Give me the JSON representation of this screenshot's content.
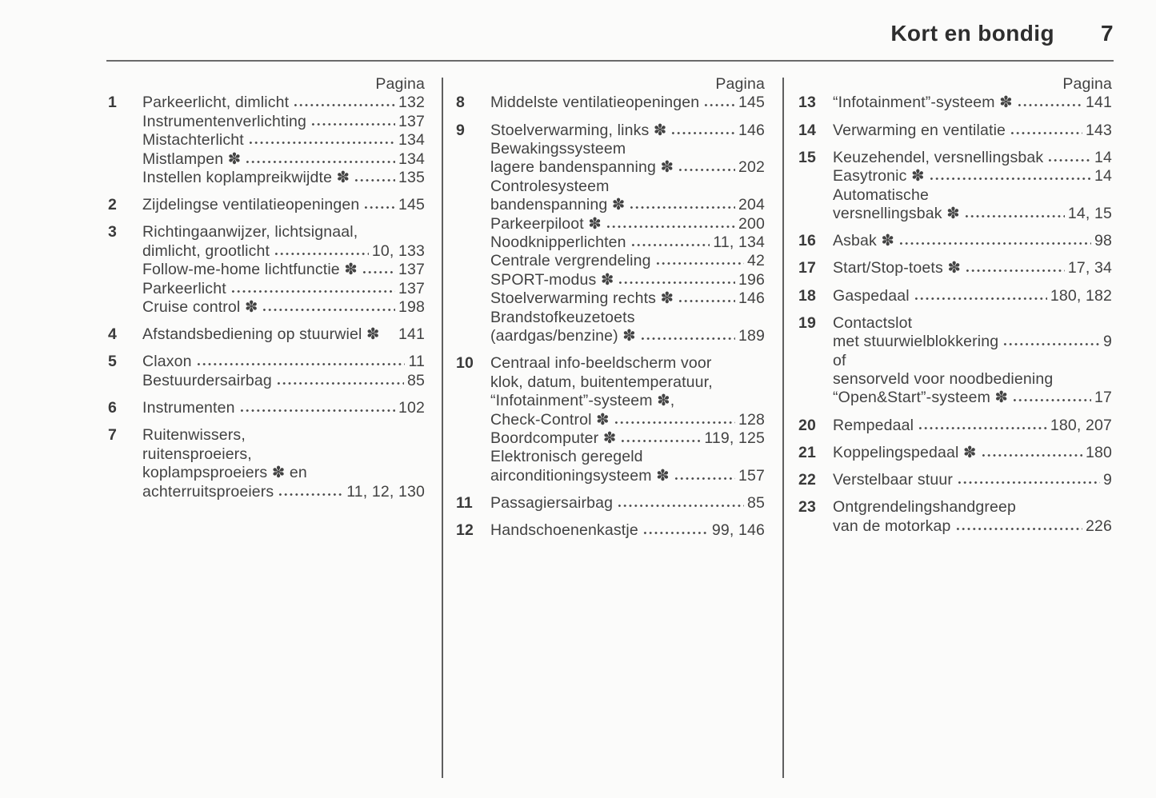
{
  "header": {
    "title": "Kort en bondig",
    "page_number": "7"
  },
  "columns": [
    {
      "pagina_label": "Pagina",
      "entries": [
        {
          "number": "1",
          "lines": [
            {
              "text": "Parkeerlicht, dimlicht",
              "dots": true,
              "page": "132"
            },
            {
              "text": "Instrumentenverlichting",
              "dots": true,
              "page": "137"
            },
            {
              "text": "Mistachterlicht",
              "dots": true,
              "page": "134"
            },
            {
              "text": "Mistlampen ✽",
              "dots": true,
              "page": "134"
            },
            {
              "text": "Instellen koplampreikwijdte ✽",
              "dots": true,
              "page": "135"
            }
          ]
        },
        {
          "number": "2",
          "lines": [
            {
              "text": "Zijdelingse ventilatieopeningen",
              "dots": true,
              "page": "145"
            }
          ]
        },
        {
          "number": "3",
          "lines": [
            {
              "text": "Richtingaanwijzer, lichtsignaal,"
            },
            {
              "text": "dimlicht, grootlicht",
              "dots": true,
              "page": "10, 133"
            },
            {
              "text": "Follow-me-home lichtfunctie ✽",
              "dots": true,
              "page": "137"
            },
            {
              "text": "Parkeerlicht",
              "dots": true,
              "page": "137"
            },
            {
              "text": "Cruise control ✽",
              "dots": true,
              "page": "198"
            }
          ]
        },
        {
          "number": "4",
          "lines": [
            {
              "text": "Afstandsbediening op stuurwiel ✽",
              "dots": false,
              "page": "141"
            }
          ]
        },
        {
          "number": "5",
          "lines": [
            {
              "text": "Claxon",
              "dots": true,
              "page": "11"
            },
            {
              "text": "Bestuurdersairbag",
              "dots": true,
              "page": "85"
            }
          ]
        },
        {
          "number": "6",
          "lines": [
            {
              "text": "Instrumenten",
              "dots": true,
              "page": "102"
            }
          ]
        },
        {
          "number": "7",
          "lines": [
            {
              "text": "Ruitenwissers,"
            },
            {
              "text": "ruitensproeiers,"
            },
            {
              "text": "koplampsproeiers ✽ en"
            },
            {
              "text": "achterruitsproeiers",
              "dots": true,
              "page": "11, 12, 130"
            }
          ]
        }
      ]
    },
    {
      "pagina_label": "Pagina",
      "entries": [
        {
          "number": "8",
          "lines": [
            {
              "text": "Middelste ventilatieopeningen",
              "dots": true,
              "page": "145"
            }
          ]
        },
        {
          "number": "9",
          "lines": [
            {
              "text": "Stoelverwarming, links ✽",
              "dots": true,
              "page": "146"
            },
            {
              "text": "Bewakingssysteem"
            },
            {
              "text": "lagere bandenspanning ✽",
              "dots": true,
              "page": "202"
            },
            {
              "text": "Controlesysteem"
            },
            {
              "text": "bandenspanning ✽",
              "dots": true,
              "page": "204"
            },
            {
              "text": "Parkeerpiloot ✽",
              "dots": true,
              "page": "200"
            },
            {
              "text": "Noodknipperlichten",
              "dots": true,
              "page": "11, 134"
            },
            {
              "text": "Centrale vergrendeling",
              "dots": true,
              "page": "42"
            },
            {
              "text": "SPORT-modus ✽",
              "dots": true,
              "page": "196"
            },
            {
              "text": "Stoelverwarming rechts ✽",
              "dots": true,
              "page": "146"
            },
            {
              "text": "Brandstofkeuzetoets"
            },
            {
              "text": "(aardgas/benzine) ✽",
              "dots": true,
              "page": "189"
            }
          ]
        },
        {
          "number": "10",
          "lines": [
            {
              "text": "Centraal info-beeldscherm voor"
            },
            {
              "text": "klok, datum, buitentemperatuur,"
            },
            {
              "text": "“Infotainment”-systeem ✽,"
            },
            {
              "text": "Check-Control ✽",
              "dots": true,
              "page": "128"
            },
            {
              "text": "Boordcomputer ✽",
              "dots": true,
              "page": "119, 125"
            },
            {
              "text": "Elektronisch geregeld"
            },
            {
              "text": "airconditioningsysteem ✽",
              "dots": true,
              "page": "157"
            }
          ]
        },
        {
          "number": "11",
          "lines": [
            {
              "text": "Passagiersairbag",
              "dots": true,
              "page": "85"
            }
          ]
        },
        {
          "number": "12",
          "lines": [
            {
              "text": "Handschoenenkastje",
              "dots": true,
              "page": "99, 146"
            }
          ]
        }
      ]
    },
    {
      "pagina_label": "Pagina",
      "entries": [
        {
          "number": "13",
          "lines": [
            {
              "text": "“Infotainment”-systeem ✽",
              "dots": true,
              "page": "141"
            }
          ]
        },
        {
          "number": "14",
          "lines": [
            {
              "text": "Verwarming en ventilatie",
              "dots": true,
              "page": "143"
            }
          ]
        },
        {
          "number": "15",
          "lines": [
            {
              "text": "Keuzehendel, versnellingsbak",
              "dots": true,
              "page": "14"
            },
            {
              "text": "Easytronic ✽",
              "dots": true,
              "page": "14"
            },
            {
              "text": "Automatische"
            },
            {
              "text": "versnellingsbak ✽",
              "dots": true,
              "page": "14, 15"
            }
          ]
        },
        {
          "number": "16",
          "lines": [
            {
              "text": "Asbak ✽",
              "dots": true,
              "page": "98"
            }
          ]
        },
        {
          "number": "17",
          "lines": [
            {
              "text": "Start/Stop-toets ✽",
              "dots": true,
              "page": "17, 34"
            }
          ]
        },
        {
          "number": "18",
          "lines": [
            {
              "text": "Gaspedaal",
              "dots": true,
              "page": "180, 182"
            }
          ]
        },
        {
          "number": "19",
          "lines": [
            {
              "text": "Contactslot"
            },
            {
              "text": "met stuurwielblokkering",
              "dots": true,
              "page": "9"
            },
            {
              "text": "of"
            },
            {
              "text": "sensorveld voor noodbediening"
            },
            {
              "text": "“Open&Start”-systeem ✽",
              "dots": true,
              "page": "17"
            }
          ]
        },
        {
          "number": "20",
          "lines": [
            {
              "text": "Rempedaal",
              "dots": true,
              "page": "180, 207"
            }
          ]
        },
        {
          "number": "21",
          "lines": [
            {
              "text": "Koppelingspedaal ✽",
              "dots": true,
              "page": "180"
            }
          ]
        },
        {
          "number": "22",
          "lines": [
            {
              "text": "Verstelbaar stuur",
              "dots": true,
              "page": "9"
            }
          ]
        },
        {
          "number": "23",
          "lines": [
            {
              "text": "Ontgrendelingshandgreep"
            },
            {
              "text": "van de motorkap",
              "dots": true,
              "page": "226"
            }
          ]
        }
      ]
    }
  ]
}
